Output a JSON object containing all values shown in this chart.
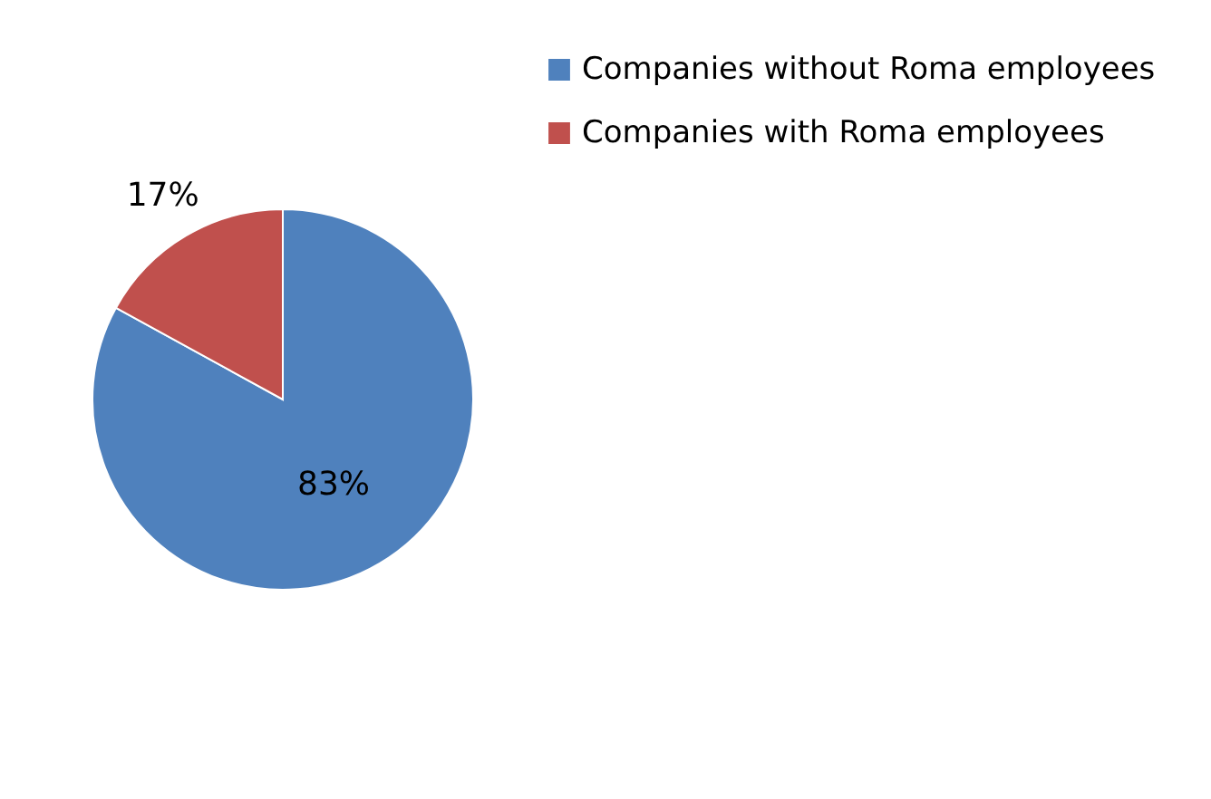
{
  "chart_data": {
    "type": "pie",
    "categories": [
      "Companies without Roma employees",
      "Companies with Roma employees"
    ],
    "values": [
      83,
      17
    ],
    "colors": [
      "#4f81bd",
      "#c0504d"
    ],
    "value_labels": [
      "83%",
      "17%"
    ],
    "legend": "right"
  }
}
